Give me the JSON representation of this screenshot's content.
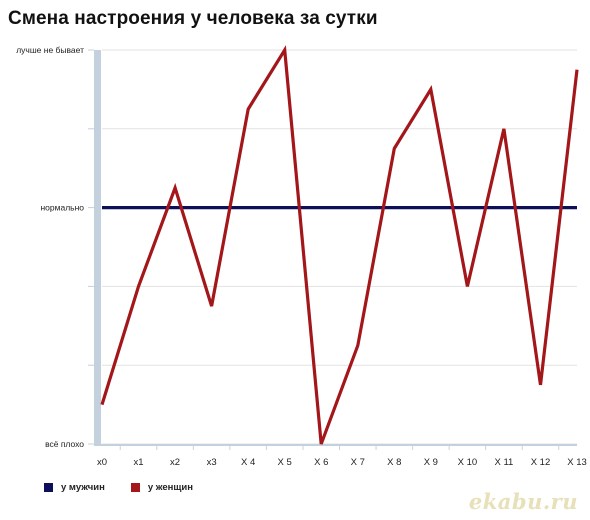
{
  "chart_data": {
    "type": "line",
    "title": "Смена настроения у человека за сутки",
    "categories": [
      "x0",
      "x1",
      "x2",
      "x3",
      "X 4",
      "X 5",
      "X 6",
      "X 7",
      "X 8",
      "X 9",
      "X 10",
      "X 11",
      "X 12",
      "X 13"
    ],
    "y_tick_labels": [
      "всё плохо",
      "нормально",
      "лучше не бывает"
    ],
    "y_tick_values": [
      0,
      3,
      5
    ],
    "ylim": [
      0,
      5
    ],
    "grid": true,
    "legend_position": "bottom-left",
    "series": [
      {
        "name": "у мужчин",
        "color": "#0d0f5a",
        "values": [
          3,
          3,
          3,
          3,
          3,
          3,
          3,
          3,
          3,
          3,
          3,
          3,
          3,
          3
        ]
      },
      {
        "name": "у женщин",
        "color": "#a3161a",
        "values": [
          0.5,
          2.0,
          3.25,
          1.75,
          4.25,
          5.0,
          0.0,
          1.25,
          3.75,
          4.5,
          2.0,
          4.0,
          0.75,
          4.75
        ]
      }
    ]
  },
  "watermark": "ekabu.ru"
}
